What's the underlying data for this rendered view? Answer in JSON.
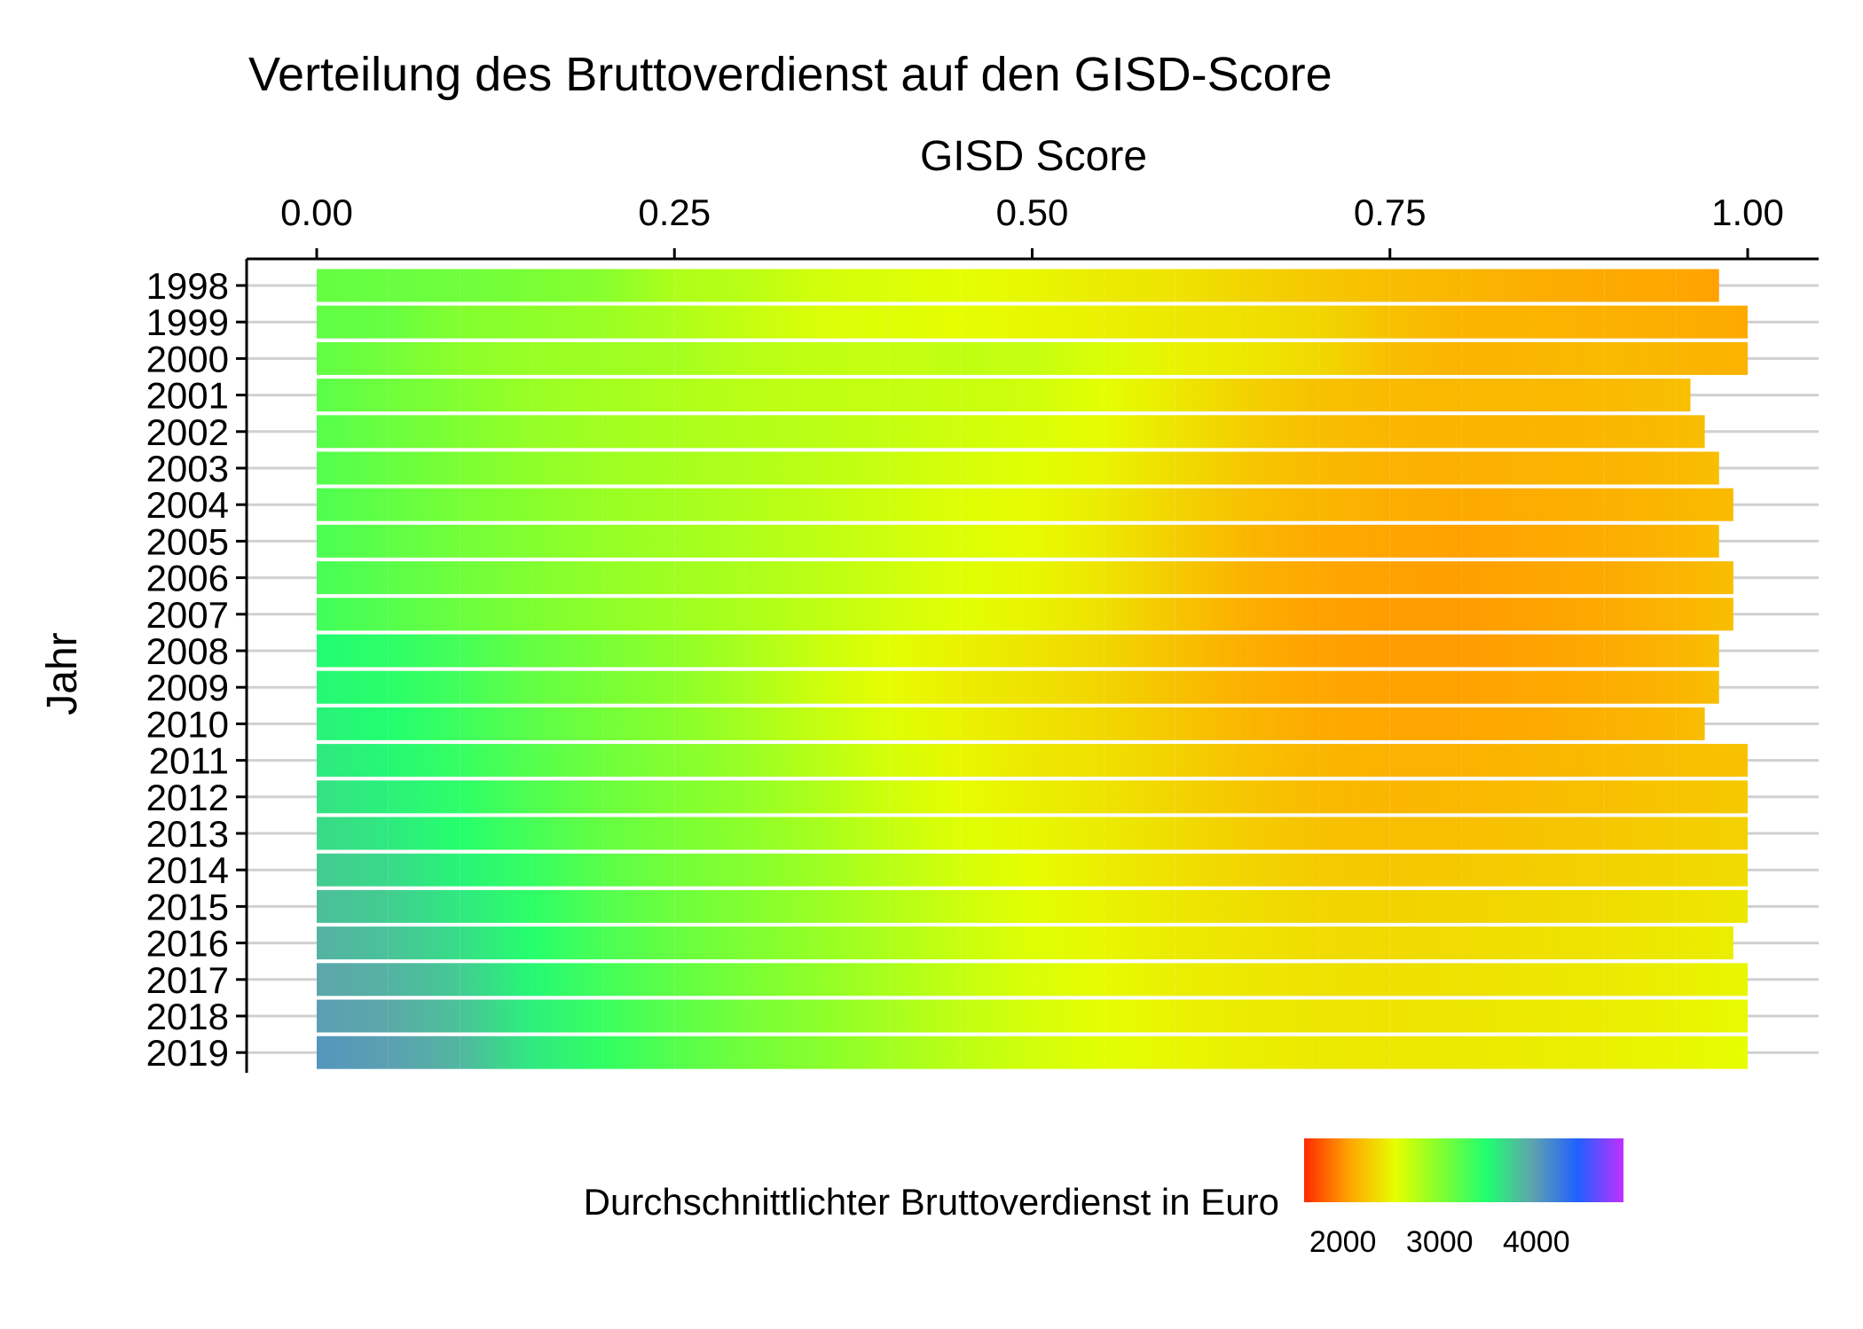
{
  "chart_data": {
    "type": "heatmap",
    "title": "Verteilung des Bruttoverdienst auf den GISD-Score",
    "xlabel": "GISD Score",
    "ylabel": "Jahr",
    "x_axis_position": "top",
    "xlim": [
      0,
      1
    ],
    "x_ticks": [
      "0.00",
      "0.25",
      "0.50",
      "0.75",
      "1.00"
    ],
    "x_tick_values": [
      0,
      0.25,
      0.5,
      0.75,
      1.0
    ],
    "y_categories": [
      "1998",
      "1999",
      "2000",
      "2001",
      "2002",
      "2003",
      "2004",
      "2005",
      "2006",
      "2007",
      "2008",
      "2009",
      "2010",
      "2011",
      "2012",
      "2013",
      "2014",
      "2015",
      "2016",
      "2017",
      "2018",
      "2019"
    ],
    "grid": true,
    "legend": {
      "title": "Durchschnittlichter Bruttoverdienst in Euro",
      "placement": "bottom",
      "ticks": [
        "2000",
        "3000",
        "4000"
      ],
      "tick_values": [
        2000,
        3000,
        4000
      ],
      "range": [
        1600,
        4900
      ],
      "colors": [
        "#ff2a00",
        "#ffa500",
        "#e6ff00",
        "#80ff30",
        "#20ff70",
        "#5fa3ad",
        "#2060ff",
        "#c030ff"
      ]
    },
    "gisd_breakpoints": [
      0,
      0.05,
      0.1,
      0.15,
      0.2,
      0.25,
      0.3,
      0.35,
      0.4,
      0.45,
      0.5,
      0.55,
      0.6,
      0.65,
      0.7,
      0.75,
      0.8,
      0.85,
      0.9,
      0.95,
      1.0
    ],
    "series": [
      {
        "year": "1998",
        "x_min": 0.0,
        "x_max": 0.98,
        "earnings": [
          3150,
          3130,
          3100,
          3050,
          2980,
          2800,
          2750,
          2640,
          2600,
          2550,
          2500,
          2440,
          2400,
          2320,
          2250,
          2200,
          2160,
          2120,
          2100,
          2080,
          2060
        ]
      },
      {
        "year": "1999",
        "x_min": 0.0,
        "x_max": 1.0,
        "earnings": [
          3170,
          3140,
          3000,
          2950,
          2900,
          2800,
          2700,
          2600,
          2580,
          2540,
          2500,
          2470,
          2420,
          2380,
          2330,
          2220,
          2150,
          2150,
          2130,
          2120,
          2100
        ]
      },
      {
        "year": "2000",
        "x_min": 0.0,
        "x_max": 1.0,
        "earnings": [
          3170,
          3080,
          2960,
          2900,
          2880,
          2850,
          2760,
          2720,
          2700,
          2720,
          2700,
          2600,
          2480,
          2420,
          2340,
          2200,
          2150,
          2160,
          2180,
          2160,
          2140
        ]
      },
      {
        "year": "2001",
        "x_min": 0.0,
        "x_max": 0.96,
        "earnings": [
          3200,
          3100,
          3000,
          2900,
          2850,
          2800,
          2750,
          2720,
          2700,
          2680,
          2650,
          2550,
          2430,
          2300,
          2220,
          2180,
          2170,
          2170,
          2180,
          2200,
          2220
        ]
      },
      {
        "year": "2002",
        "x_min": 0.0,
        "x_max": 0.97,
        "earnings": [
          3220,
          3120,
          3020,
          2920,
          2860,
          2820,
          2780,
          2750,
          2700,
          2650,
          2600,
          2520,
          2400,
          2280,
          2200,
          2160,
          2150,
          2150,
          2160,
          2180,
          2200
        ]
      },
      {
        "year": "2003",
        "x_min": 0.0,
        "x_max": 0.98,
        "earnings": [
          3240,
          3140,
          3040,
          2950,
          2880,
          2840,
          2790,
          2740,
          2680,
          2620,
          2570,
          2480,
          2360,
          2250,
          2180,
          2140,
          2130,
          2140,
          2150,
          2170,
          2200
        ]
      },
      {
        "year": "2004",
        "x_min": 0.0,
        "x_max": 0.99,
        "earnings": [
          3260,
          3160,
          3060,
          2980,
          2900,
          2850,
          2790,
          2720,
          2650,
          2580,
          2520,
          2440,
          2320,
          2220,
          2160,
          2120,
          2100,
          2110,
          2130,
          2160,
          2190
        ]
      },
      {
        "year": "2005",
        "x_min": 0.0,
        "x_max": 0.98,
        "earnings": [
          3280,
          3180,
          3080,
          3000,
          2920,
          2860,
          2800,
          2730,
          2660,
          2590,
          2520,
          2420,
          2280,
          2160,
          2100,
          2070,
          2060,
          2080,
          2110,
          2150,
          2190
        ]
      },
      {
        "year": "2006",
        "x_min": 0.0,
        "x_max": 0.99,
        "earnings": [
          3300,
          3200,
          3100,
          3010,
          2930,
          2870,
          2810,
          2740,
          2660,
          2580,
          2500,
          2400,
          2260,
          2140,
          2080,
          2060,
          2050,
          2070,
          2100,
          2150,
          2200
        ]
      },
      {
        "year": "2007",
        "x_min": 0.0,
        "x_max": 0.99,
        "earnings": [
          3330,
          3230,
          3120,
          3030,
          2950,
          2880,
          2810,
          2730,
          2640,
          2560,
          2480,
          2380,
          2240,
          2120,
          2060,
          2040,
          2040,
          2060,
          2100,
          2150,
          2200
        ]
      },
      {
        "year": "2008",
        "x_min": 0.0,
        "x_max": 0.98,
        "earnings": [
          3500,
          3420,
          3300,
          3150,
          3050,
          2950,
          2820,
          2680,
          2560,
          2470,
          2400,
          2330,
          2220,
          2120,
          2060,
          2040,
          2040,
          2060,
          2100,
          2150,
          2200
        ]
      },
      {
        "year": "2009",
        "x_min": 0.0,
        "x_max": 0.98,
        "earnings": [
          3520,
          3440,
          3320,
          3160,
          3060,
          2960,
          2830,
          2660,
          2530,
          2450,
          2390,
          2320,
          2220,
          2130,
          2080,
          2060,
          2060,
          2080,
          2110,
          2150,
          2200
        ]
      },
      {
        "year": "2010",
        "x_min": 0.0,
        "x_max": 0.97,
        "earnings": [
          3560,
          3480,
          3350,
          3200,
          3080,
          2980,
          2850,
          2700,
          2580,
          2480,
          2400,
          2340,
          2250,
          2160,
          2100,
          2080,
          2080,
          2100,
          2130,
          2170,
          2200
        ]
      },
      {
        "year": "2011",
        "x_min": 0.0,
        "x_max": 1.0,
        "earnings": [
          3600,
          3520,
          3380,
          3230,
          3100,
          3000,
          2900,
          2760,
          2620,
          2500,
          2420,
          2380,
          2300,
          2220,
          2160,
          2140,
          2140,
          2160,
          2180,
          2200,
          2220
        ]
      },
      {
        "year": "2012",
        "x_min": 0.0,
        "x_max": 1.0,
        "earnings": [
          3640,
          3560,
          3420,
          3260,
          3120,
          3020,
          2930,
          2800,
          2650,
          2530,
          2460,
          2400,
          2320,
          2240,
          2180,
          2160,
          2170,
          2190,
          2210,
          2240,
          2260
        ]
      },
      {
        "year": "2013",
        "x_min": 0.0,
        "x_max": 1.0,
        "earnings": [
          3680,
          3600,
          3460,
          3300,
          3150,
          3050,
          2960,
          2840,
          2700,
          2580,
          2500,
          2440,
          2360,
          2280,
          2220,
          2200,
          2210,
          2230,
          2250,
          2280,
          2300
        ]
      },
      {
        "year": "2014",
        "x_min": 0.0,
        "x_max": 1.0,
        "earnings": [
          3750,
          3680,
          3540,
          3380,
          3200,
          3080,
          2990,
          2880,
          2750,
          2630,
          2530,
          2450,
          2380,
          2320,
          2270,
          2250,
          2260,
          2280,
          2300,
          2330,
          2360
        ]
      },
      {
        "year": "2015",
        "x_min": 0.0,
        "x_max": 1.0,
        "earnings": [
          3820,
          3740,
          3600,
          3420,
          3240,
          3110,
          3010,
          2900,
          2780,
          2660,
          2560,
          2480,
          2420,
          2370,
          2330,
          2310,
          2320,
          2340,
          2360,
          2390,
          2420
        ]
      },
      {
        "year": "2016",
        "x_min": 0.0,
        "x_max": 0.99,
        "earnings": [
          3880,
          3800,
          3660,
          3460,
          3280,
          3140,
          3030,
          2920,
          2800,
          2680,
          2580,
          2500,
          2440,
          2400,
          2360,
          2350,
          2360,
          2380,
          2400,
          2430,
          2460
        ]
      },
      {
        "year": "2017",
        "x_min": 0.0,
        "x_max": 1.0,
        "earnings": [
          3940,
          3880,
          3750,
          3520,
          3320,
          3170,
          3050,
          2940,
          2820,
          2700,
          2600,
          2520,
          2460,
          2420,
          2390,
          2380,
          2390,
          2410,
          2430,
          2460,
          2500
        ]
      },
      {
        "year": "2018",
        "x_min": 0.0,
        "x_max": 1.0,
        "earnings": [
          3990,
          3930,
          3800,
          3560,
          3360,
          3200,
          3070,
          2960,
          2840,
          2720,
          2620,
          2540,
          2480,
          2440,
          2410,
          2400,
          2410,
          2430,
          2450,
          2480,
          2520
        ]
      },
      {
        "year": "2019",
        "x_min": 0.0,
        "x_max": 1.0,
        "earnings": [
          4050,
          3980,
          3860,
          3600,
          3400,
          3230,
          3090,
          2980,
          2860,
          2740,
          2640,
          2560,
          2500,
          2460,
          2430,
          2420,
          2430,
          2450,
          2470,
          2500,
          2540
        ]
      }
    ]
  }
}
